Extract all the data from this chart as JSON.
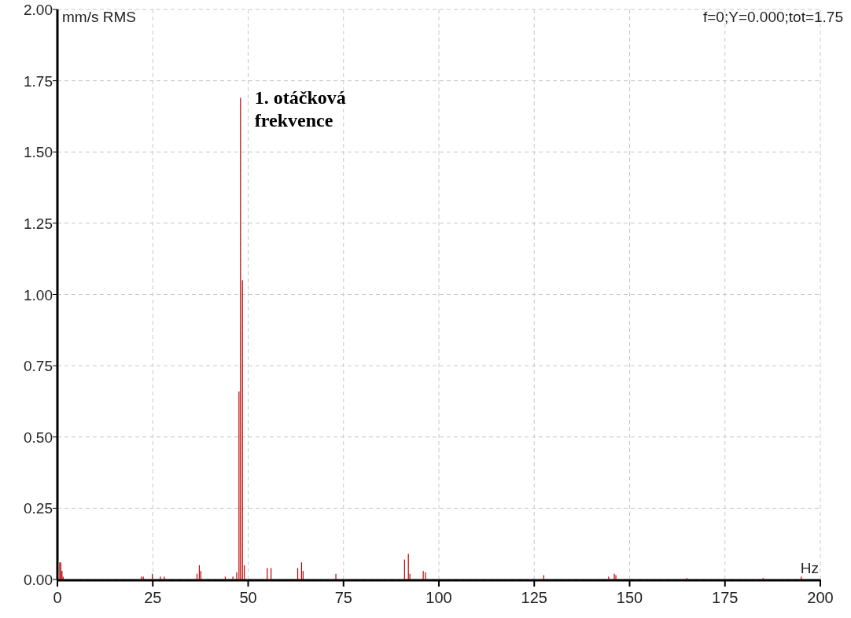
{
  "chart_data": {
    "type": "bar",
    "ylabel": "mm/s RMS",
    "xlabel": "Hz",
    "annotations": [
      "f=0;Y=0.000;tot=1.75",
      {
        "text": "1. otáčková frekvence",
        "x": 48,
        "y": 1.69
      }
    ],
    "x": [
      0.6,
      0.9,
      1.2,
      1.5,
      22,
      22.5,
      24.9,
      27,
      28,
      36.6,
      37.2,
      37.6,
      44,
      46,
      47.0,
      47.6,
      48,
      48.5,
      49,
      55,
      56,
      63,
      64,
      64.4,
      73,
      91,
      92,
      92.4,
      95.9,
      96.5,
      127.5,
      144.5,
      146,
      146.4,
      165,
      185,
      195
    ],
    "values": [
      0.06,
      0.06,
      0.03,
      0.01,
      0.01,
      0.01,
      0.02,
      0.01,
      0.01,
      0.02,
      0.05,
      0.03,
      0.01,
      0.01,
      0.025,
      0.66,
      1.69,
      1.05,
      0.05,
      0.04,
      0.04,
      0.04,
      0.06,
      0.03,
      0.02,
      0.07,
      0.09,
      0.02,
      0.03,
      0.025,
      0.015,
      0.01,
      0.02,
      0.015,
      0.005,
      0.005,
      0.01
    ],
    "color": "#c00000",
    "xlim": [
      0,
      200
    ],
    "xticks": [
      0,
      25,
      50,
      75,
      100,
      125,
      150,
      175,
      200
    ],
    "ylim": [
      0,
      2
    ],
    "yticks": [
      {
        "value": 0,
        "label": "0.00"
      },
      {
        "value": 0.25,
        "label": "0.25"
      },
      {
        "value": 0.5,
        "label": "0.50"
      },
      {
        "value": 0.75,
        "label": "0.75"
      },
      {
        "value": 1,
        "label": "1.00"
      },
      {
        "value": 1.25,
        "label": "1.25"
      },
      {
        "value": 1.5,
        "label": "1.50"
      },
      {
        "value": 1.75,
        "label": "1.75"
      },
      {
        "value": 2,
        "label": "2.00"
      }
    ],
    "grid": true
  }
}
